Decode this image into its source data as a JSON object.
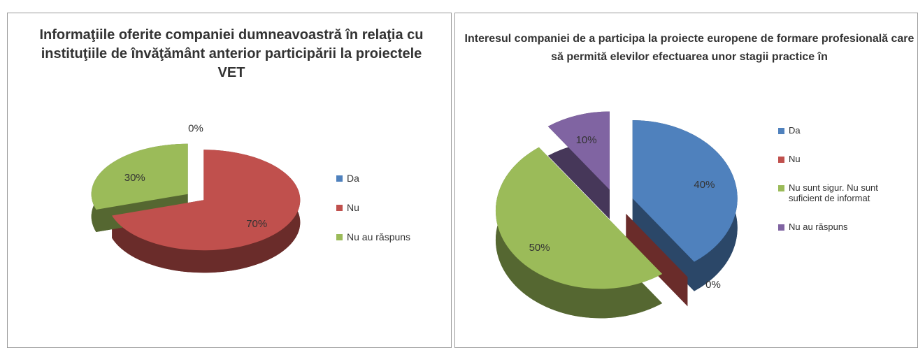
{
  "chart_data": [
    {
      "type": "pie",
      "title": "Informaţiile oferite companiei dumneavoastră în relaţia cu instituţiile de învăţământ anterior participării la proiectele VET",
      "categories": [
        "Da",
        "Nu",
        "Nu au răspuns"
      ],
      "values": [
        0,
        70,
        30
      ],
      "value_labels": [
        "0%",
        "70%",
        "30%"
      ],
      "colors": [
        "#4f81bd",
        "#c0504d",
        "#9bbb59"
      ]
    },
    {
      "type": "pie",
      "title": "Interesul companiei de a participa la proiecte europene de formare profesională care să permită elevilor efectuarea unor stagii practice în",
      "categories": [
        "Da",
        "Nu",
        "Nu sunt sigur. Nu sunt suficient de informat",
        "Nu au răspuns"
      ],
      "values": [
        40,
        0,
        50,
        10
      ],
      "value_labels": [
        "40%",
        "0%",
        "50%",
        "10%"
      ],
      "colors": [
        "#4f81bd",
        "#c0504d",
        "#9bbb59",
        "#8064a2"
      ]
    }
  ]
}
